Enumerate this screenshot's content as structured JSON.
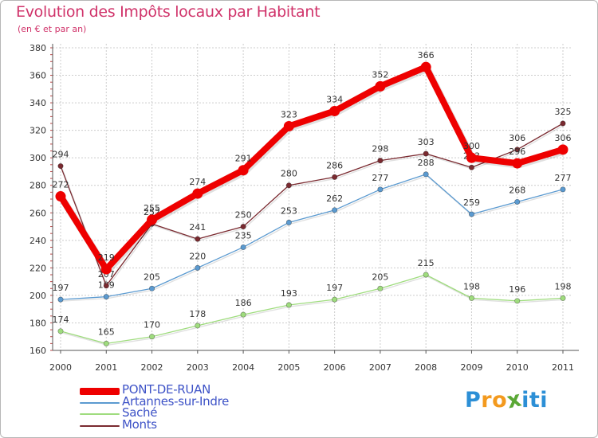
{
  "title": "Evolution des Impôts locaux par Habitant",
  "subtitle": "(en € et par an)",
  "logo": {
    "text": "Proxiti",
    "letters": [
      "P",
      "r",
      "o",
      "x",
      "i",
      "t",
      "i"
    ],
    "colors": [
      "#2c8fd6",
      "#f39a1e",
      "#f39a1e",
      "#5aa835",
      "#2c8fd6",
      "#2c8fd6",
      "#2c8fd6"
    ]
  },
  "colors": {
    "title": "#d0336a",
    "legend_text": "#3e53c7",
    "grid": "#cccccc"
  },
  "chart_data": {
    "type": "line",
    "title": "Evolution des Impôts locaux par Habitant",
    "subtitle": "(en € et par an)",
    "xlabel": "",
    "ylabel": "",
    "ylim": [
      160,
      380
    ],
    "yticks": [
      160,
      180,
      200,
      220,
      240,
      260,
      280,
      300,
      320,
      340,
      360,
      380
    ],
    "grid": true,
    "legend_position": "bottom-left",
    "categories": [
      "2000",
      "2001",
      "2002",
      "2003",
      "2004",
      "2005",
      "2006",
      "2007",
      "2008",
      "2009",
      "2010",
      "2011"
    ],
    "series": [
      {
        "name": "PONT-DE-RUAN",
        "color": "#ee0000",
        "highlight": true,
        "values": [
          272,
          219,
          255,
          274,
          291,
          323,
          334,
          352,
          366,
          300,
          296,
          306
        ]
      },
      {
        "name": "Artannes-sur-Indre",
        "color": "#5b9ad0",
        "highlight": false,
        "values": [
          197,
          199,
          205,
          220,
          235,
          253,
          262,
          277,
          288,
          259,
          268,
          277
        ]
      },
      {
        "name": "Saché",
        "color": "#9fdc7e",
        "highlight": false,
        "values": [
          174,
          165,
          170,
          178,
          186,
          193,
          197,
          205,
          215,
          198,
          196,
          198
        ]
      },
      {
        "name": "Monts",
        "color": "#7a2a30",
        "highlight": false,
        "values": [
          294,
          207,
          252,
          241,
          250,
          280,
          286,
          298,
          303,
          293,
          306,
          325
        ]
      }
    ]
  }
}
